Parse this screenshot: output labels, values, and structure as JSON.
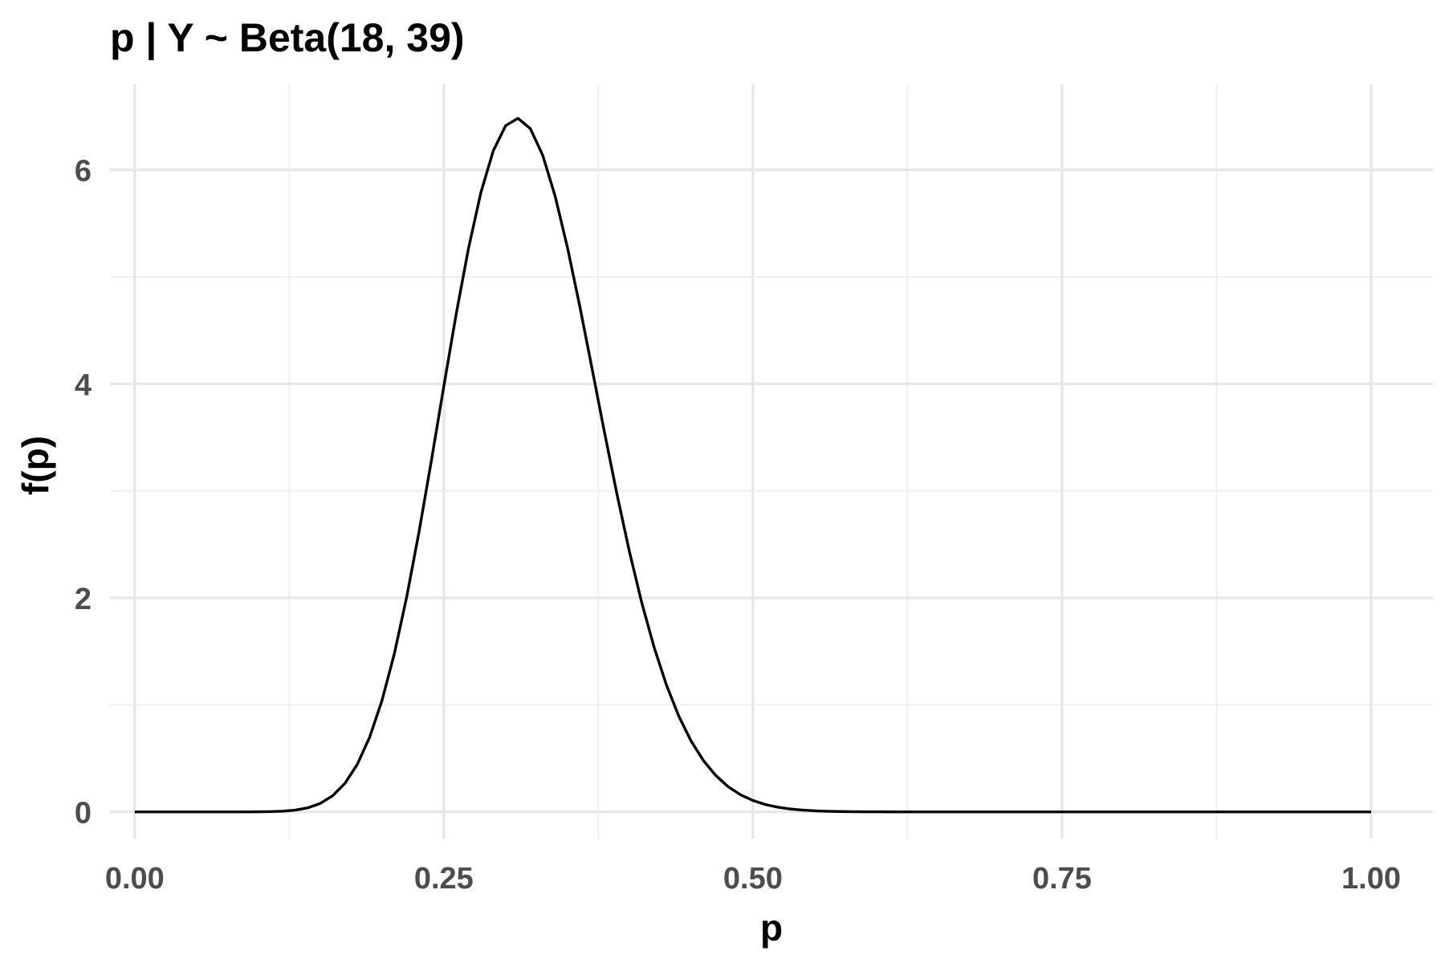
{
  "chart_data": {
    "type": "line",
    "title": "p | Y ~ Beta(18, 39)",
    "xlabel": "p",
    "ylabel": "f(p)",
    "xlim": [
      -0.02,
      1.05
    ],
    "ylim": [
      -0.25,
      6.8
    ],
    "x_ticks": [
      0,
      0.25,
      0.5,
      0.75,
      1
    ],
    "x_tick_labels": [
      "0.00",
      "0.25",
      "0.50",
      "0.75",
      "1.00"
    ],
    "y_ticks": [
      0,
      2,
      4,
      6
    ],
    "y_tick_labels": [
      "0",
      "2",
      "4",
      "6"
    ],
    "x_minor_ticks": [
      0.125,
      0.375,
      0.625,
      0.875
    ],
    "y_minor_ticks": [
      1,
      3,
      5
    ],
    "grid": true,
    "legend": "none",
    "distribution": {
      "family": "Beta",
      "alpha": 18,
      "beta": 39
    },
    "series": [
      {
        "color": "#000000",
        "x": [
          0,
          0.05,
          0.1,
          0.12,
          0.14,
          0.16,
          0.18,
          0.2,
          0.22,
          0.24,
          0.26,
          0.28,
          0.3,
          0.31,
          0.32,
          0.34,
          0.36,
          0.38,
          0.4,
          0.42,
          0.44,
          0.46,
          0.48,
          0.5,
          0.52,
          0.55,
          0.6,
          0.7,
          0.8,
          0.9,
          1
        ],
        "y": [
          0,
          0,
          0.01,
          0.03,
          0.11,
          0.33,
          0.78,
          1.53,
          2.6,
          3.8,
          4.99,
          5.9,
          6.4,
          6.47,
          6.39,
          5.93,
          5.08,
          4.0,
          2.87,
          1.86,
          1.09,
          0.58,
          0.28,
          0.12,
          0.05,
          0.01,
          0,
          0,
          0,
          0,
          0
        ]
      }
    ]
  }
}
